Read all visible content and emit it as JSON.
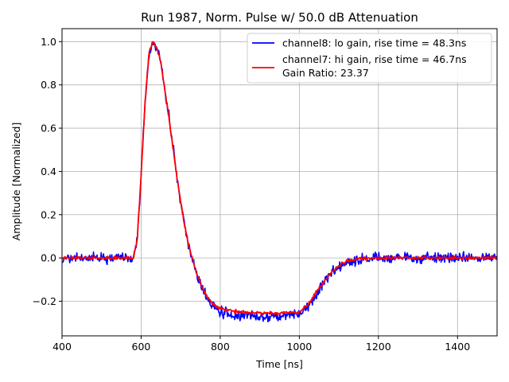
{
  "chart_data": {
    "type": "line",
    "title": "Run 1987, Norm. Pulse w/ 50.0 dB Attenuation",
    "xlabel": "Time [ns]",
    "ylabel": "Amplitude [Normalized]",
    "xlim": [
      400,
      1500
    ],
    "ylim": [
      -0.36,
      1.06
    ],
    "xticks": [
      400,
      600,
      800,
      1000,
      1200,
      1400
    ],
    "xtick_labels": [
      "400",
      "600",
      "800",
      "1000",
      "1200",
      "1400"
    ],
    "yticks": [
      -0.2,
      0.0,
      0.2,
      0.4,
      0.6,
      0.8,
      1.0
    ],
    "ytick_labels": [
      "−0.2",
      "0.0",
      "0.2",
      "0.4",
      "0.6",
      "0.8",
      "1.0"
    ],
    "grid": true,
    "legend_position": "top-right",
    "legend": {
      "entries": [
        "channel8: lo gain, rise time = 48.3ns",
        "channel7: hi gain, rise time = 46.7ns"
      ],
      "extra_text": "Gain Ratio: 23.37"
    },
    "series": [
      {
        "name": "channel8: lo gain, rise time = 48.3ns",
        "color": "#0000ff",
        "noise": "high",
        "x": [
          400,
          580,
          590,
          600,
          610,
          620,
          630,
          640,
          650,
          660,
          670,
          680,
          690,
          700,
          710,
          720,
          740,
          760,
          780,
          800,
          850,
          900,
          950,
          1000,
          1020,
          1050,
          1080,
          1100,
          1120,
          1150,
          1200,
          1300,
          1400,
          1500
        ],
        "y": [
          0.0,
          0.0,
          0.08,
          0.38,
          0.72,
          0.94,
          0.99,
          0.97,
          0.9,
          0.78,
          0.65,
          0.52,
          0.38,
          0.26,
          0.15,
          0.06,
          -0.07,
          -0.16,
          -0.22,
          -0.25,
          -0.27,
          -0.27,
          -0.27,
          -0.26,
          -0.23,
          -0.15,
          -0.07,
          -0.04,
          -0.02,
          -0.01,
          0.0,
          0.0,
          0.0,
          0.0
        ]
      },
      {
        "name": "channel7: hi gain, rise time = 46.7ns",
        "color": "#ff0000",
        "noise": "low",
        "x": [
          400,
          580,
          590,
          600,
          610,
          620,
          630,
          640,
          650,
          660,
          670,
          680,
          690,
          700,
          710,
          720,
          740,
          760,
          780,
          800,
          850,
          900,
          950,
          1000,
          1020,
          1050,
          1080,
          1100,
          1120,
          1150,
          1200,
          1300,
          1400,
          1500
        ],
        "y": [
          0.0,
          0.0,
          0.08,
          0.38,
          0.72,
          0.95,
          1.0,
          0.97,
          0.9,
          0.78,
          0.65,
          0.52,
          0.38,
          0.26,
          0.15,
          0.06,
          -0.07,
          -0.16,
          -0.21,
          -0.235,
          -0.25,
          -0.255,
          -0.255,
          -0.25,
          -0.22,
          -0.14,
          -0.07,
          -0.035,
          -0.015,
          -0.005,
          0.0,
          0.0,
          0.0,
          0.0
        ]
      }
    ]
  }
}
